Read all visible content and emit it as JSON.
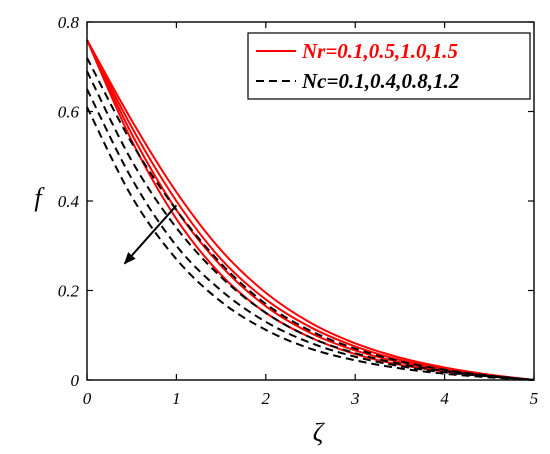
{
  "chart_data": {
    "type": "line",
    "xlabel": "ζ",
    "ylabel": "f",
    "xlim": [
      0,
      5
    ],
    "ylim": [
      0,
      0.8
    ],
    "xticks": [
      "0",
      "1",
      "2",
      "3",
      "4",
      "5"
    ],
    "yticks": [
      "0",
      "0.2",
      "0.4",
      "0.6",
      "0.8"
    ],
    "grid": false,
    "legend_position": "top-right",
    "legend": [
      {
        "label": "Nr=0.1,0.5,1.0,1.5",
        "color": "#ff0000",
        "style": "solid"
      },
      {
        "label": "Nc=0.1,0.4,0.8,1.2",
        "color": "#000000",
        "style": "dashed"
      }
    ],
    "arrow_annotation": {
      "from": [
        1.0,
        0.39
      ],
      "to": [
        0.42,
        0.26
      ],
      "color": "#000000"
    },
    "series": [
      {
        "group": "Nr",
        "color": "#ff0000",
        "style": "solid",
        "x": [
          0,
          0.5,
          1,
          1.5,
          2,
          2.5,
          3,
          3.5,
          4,
          4.5,
          5
        ],
        "y": [
          0.76,
          0.58,
          0.42,
          0.29,
          0.195,
          0.128,
          0.082,
          0.05,
          0.028,
          0.012,
          0
        ]
      },
      {
        "group": "Nr",
        "color": "#ff0000",
        "style": "solid",
        "x": [
          0,
          0.5,
          1,
          1.5,
          2,
          2.5,
          3,
          3.5,
          4,
          4.5,
          5
        ],
        "y": [
          0.76,
          0.565,
          0.4,
          0.27,
          0.18,
          0.118,
          0.075,
          0.045,
          0.025,
          0.011,
          0
        ]
      },
      {
        "group": "Nr",
        "color": "#ff0000",
        "style": "solid",
        "x": [
          0,
          0.5,
          1,
          1.5,
          2,
          2.5,
          3,
          3.5,
          4,
          4.5,
          5
        ],
        "y": [
          0.76,
          0.55,
          0.38,
          0.255,
          0.165,
          0.105,
          0.066,
          0.04,
          0.022,
          0.01,
          0
        ]
      },
      {
        "group": "Nr",
        "color": "#ff0000",
        "style": "solid",
        "x": [
          0,
          0.5,
          1,
          1.5,
          2,
          2.5,
          3,
          3.5,
          4,
          4.5,
          5
        ],
        "y": [
          0.76,
          0.535,
          0.36,
          0.235,
          0.15,
          0.095,
          0.058,
          0.034,
          0.019,
          0.008,
          0
        ]
      },
      {
        "group": "Nc",
        "color": "#000000",
        "style": "dashed",
        "x": [
          0,
          0.5,
          1,
          1.5,
          2,
          2.5,
          3,
          3.5,
          4,
          4.5,
          5
        ],
        "y": [
          0.72,
          0.53,
          0.38,
          0.26,
          0.17,
          0.11,
          0.07,
          0.042,
          0.023,
          0.01,
          0
        ]
      },
      {
        "group": "Nc",
        "color": "#000000",
        "style": "dashed",
        "x": [
          0,
          0.5,
          1,
          1.5,
          2,
          2.5,
          3,
          3.5,
          4,
          4.5,
          5
        ],
        "y": [
          0.69,
          0.49,
          0.34,
          0.23,
          0.15,
          0.095,
          0.06,
          0.036,
          0.02,
          0.009,
          0
        ]
      },
      {
        "group": "Nc",
        "color": "#000000",
        "style": "dashed",
        "x": [
          0,
          0.5,
          1,
          1.5,
          2,
          2.5,
          3,
          3.5,
          4,
          4.5,
          5
        ],
        "y": [
          0.65,
          0.45,
          0.3,
          0.2,
          0.13,
          0.083,
          0.052,
          0.031,
          0.017,
          0.008,
          0
        ]
      },
      {
        "group": "Nc",
        "color": "#000000",
        "style": "dashed",
        "x": [
          0,
          0.5,
          1,
          1.5,
          2,
          2.5,
          3,
          3.5,
          4,
          4.5,
          5
        ],
        "y": [
          0.61,
          0.41,
          0.27,
          0.175,
          0.112,
          0.07,
          0.044,
          0.026,
          0.014,
          0.006,
          0
        ]
      }
    ]
  }
}
